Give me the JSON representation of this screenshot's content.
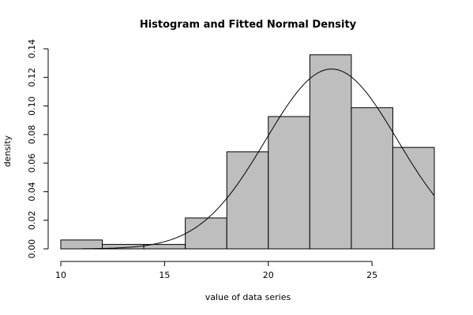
{
  "chart_data": {
    "type": "bar",
    "title": "Histogram and Fitted Normal Density",
    "xlabel": "value of data series",
    "ylabel": "density",
    "xlim": [
      10,
      28
    ],
    "ylim": [
      0,
      0.14
    ],
    "x_ticks": [
      10,
      15,
      20,
      25
    ],
    "y_ticks": [
      0.0,
      0.02,
      0.04,
      0.06,
      0.08,
      0.1,
      0.12,
      0.14
    ],
    "y_tick_labels": [
      "0.00",
      "0.02",
      "0.04",
      "0.06",
      "0.08",
      "0.10",
      "0.12",
      "0.14"
    ],
    "bins": [
      {
        "from": 10,
        "to": 12,
        "density": 0.0062
      },
      {
        "from": 12,
        "to": 14,
        "density": 0.0031
      },
      {
        "from": 14,
        "to": 16,
        "density": 0.0031
      },
      {
        "from": 16,
        "to": 18,
        "density": 0.0216
      },
      {
        "from": 18,
        "to": 20,
        "density": 0.0679
      },
      {
        "from": 20,
        "to": 22,
        "density": 0.0926
      },
      {
        "from": 22,
        "to": 24,
        "density": 0.1358
      },
      {
        "from": 24,
        "to": 26,
        "density": 0.0988
      },
      {
        "from": 26,
        "to": 28,
        "density": 0.071
      }
    ],
    "fitted_normal": {
      "mean": 23.05,
      "sd": 3.17
    },
    "bar_fill": "#bebebe",
    "bar_stroke": "#000000",
    "curve_color": "#000000",
    "grid": false
  }
}
